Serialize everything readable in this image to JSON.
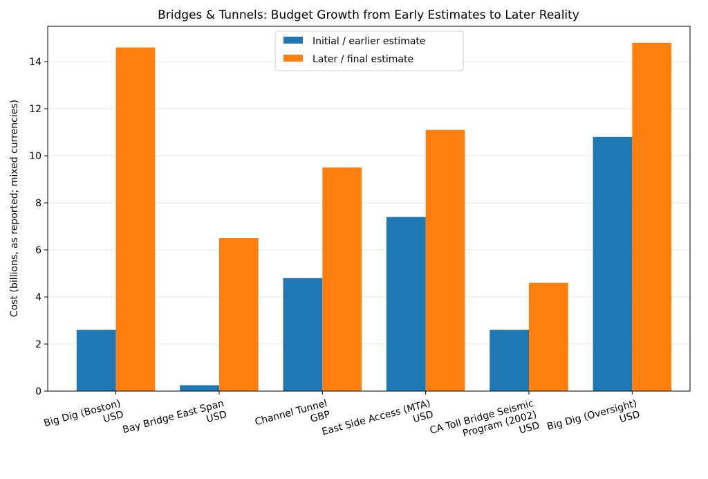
{
  "chart_data": {
    "type": "bar",
    "title": "Bridges & Tunnels: Budget Growth from Early Estimates to Later Reality",
    "xlabel": "",
    "ylabel": "Cost (billions, as reported; mixed currencies)",
    "categories": [
      [
        "Big Dig (Boston)",
        "USD"
      ],
      [
        "Bay Bridge East Span",
        "USD"
      ],
      [
        "Channel Tunnel",
        "GBP"
      ],
      [
        "East Side Access (MTA)",
        "USD"
      ],
      [
        "CA Toll Bridge Seismic",
        "Program (2002)",
        "USD"
      ],
      [
        "Big Dig (Oversight)",
        "USD"
      ]
    ],
    "series": [
      {
        "name": "Initial / earlier estimate",
        "color": "#1f77b4",
        "values": [
          2.6,
          0.25,
          4.8,
          7.4,
          2.6,
          10.8
        ]
      },
      {
        "name": "Later / final estimate",
        "color": "#ff7f0e",
        "values": [
          14.6,
          6.5,
          9.5,
          11.1,
          4.6,
          14.8
        ]
      }
    ],
    "ylim": [
      0,
      15.5
    ],
    "yticks": [
      0,
      2,
      4,
      6,
      8,
      10,
      12,
      14
    ],
    "grid": "horizontal",
    "legend_placement": "top-center"
  }
}
